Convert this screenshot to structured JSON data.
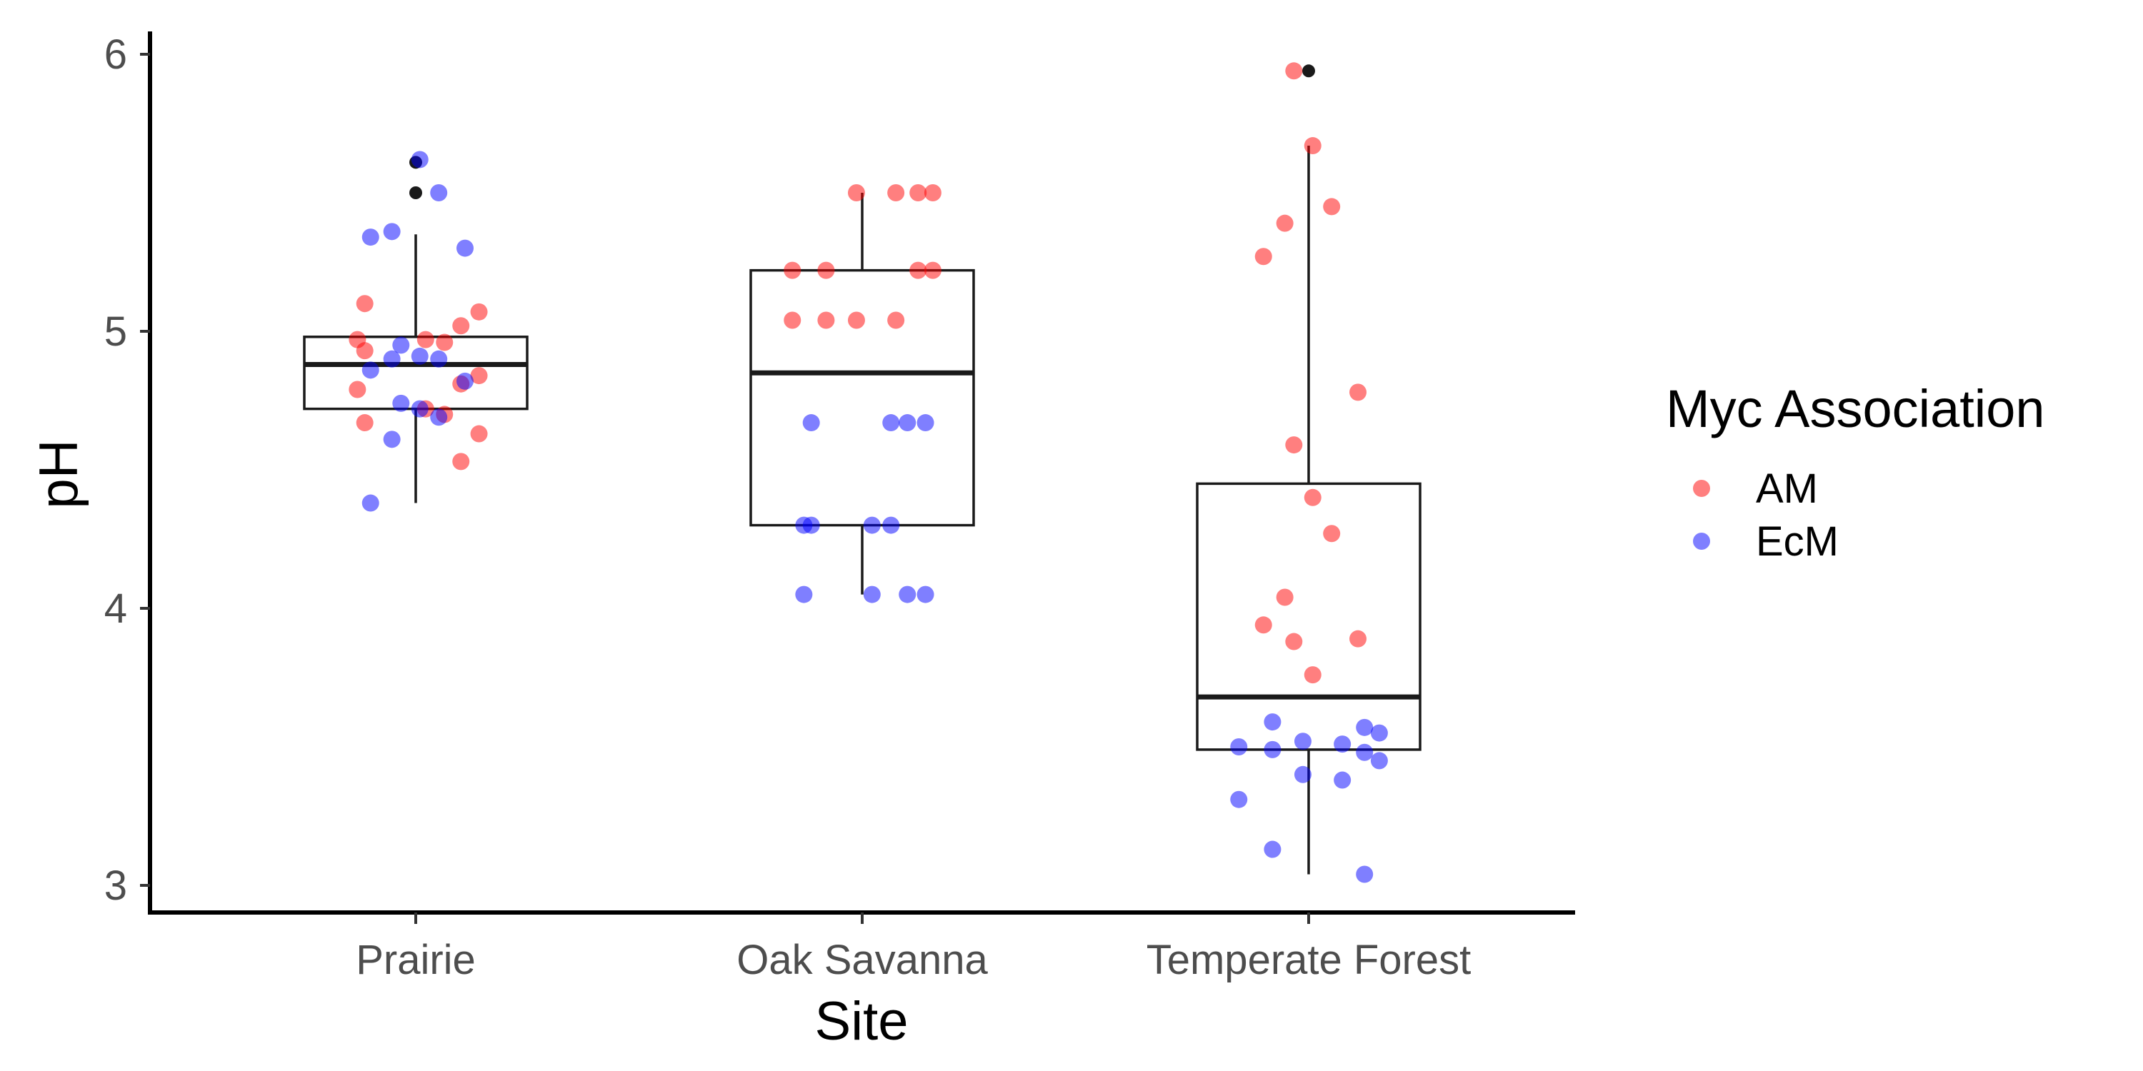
{
  "chart_data": {
    "type": "boxplot",
    "xlabel": "Site",
    "ylabel": "pH",
    "categories": [
      "Prairie",
      "Oak Savanna",
      "Temperate Forest"
    ],
    "y_ticks": [
      "3",
      "4",
      "5",
      "6"
    ],
    "ylim": [
      2.9,
      6.08
    ],
    "grid": false,
    "legend": {
      "title": "Myc Association",
      "position": "right",
      "entries": [
        {
          "name": "AM",
          "color": "#ff0000"
        },
        {
          "name": "EcM",
          "color": "#0000ff"
        }
      ]
    },
    "boxes": [
      {
        "category": "Prairie",
        "lower_whisker": 4.38,
        "q1": 4.72,
        "median": 4.88,
        "q3": 4.98,
        "upper_whisker": 5.35,
        "outliers": [
          5.5,
          5.61
        ]
      },
      {
        "category": "Oak Savanna",
        "lower_whisker": 4.05,
        "q1": 4.3,
        "median": 4.85,
        "q3": 5.22,
        "upper_whisker": 5.5,
        "outliers": []
      },
      {
        "category": "Temperate Forest",
        "lower_whisker": 3.04,
        "q1": 3.49,
        "median": 3.68,
        "q3": 4.45,
        "upper_whisker": 5.67,
        "outliers": [
          5.94
        ]
      }
    ],
    "points": [
      {
        "site": "Prairie",
        "group": "AM",
        "values": [
          5.1,
          5.07,
          5.02,
          4.97,
          4.97,
          4.96,
          4.93,
          4.84,
          4.81,
          4.79,
          4.72,
          4.7,
          4.67,
          4.63,
          4.53
        ]
      },
      {
        "site": "Prairie",
        "group": "EcM",
        "values": [
          5.62,
          5.5,
          5.36,
          5.34,
          5.3,
          4.95,
          4.91,
          4.9,
          4.9,
          4.86,
          4.82,
          4.74,
          4.72,
          4.69,
          4.61,
          4.38
        ]
      },
      {
        "site": "Oak Savanna",
        "group": "AM",
        "values": [
          5.5,
          5.5,
          5.5,
          5.5,
          5.22,
          5.22,
          5.22,
          5.22,
          5.04,
          5.04,
          5.04,
          5.04
        ]
      },
      {
        "site": "Oak Savanna",
        "group": "EcM",
        "values": [
          4.67,
          4.67,
          4.67,
          4.67,
          4.3,
          4.3,
          4.3,
          4.3,
          4.05,
          4.05,
          4.05,
          4.05
        ]
      },
      {
        "site": "Temperate Forest",
        "group": "AM",
        "values": [
          5.94,
          5.67,
          5.45,
          5.39,
          5.27,
          4.78,
          4.59,
          4.4,
          4.27,
          4.04,
          3.94,
          3.89,
          3.88,
          3.76
        ]
      },
      {
        "site": "Temperate Forest",
        "group": "EcM",
        "values": [
          3.59,
          3.57,
          3.55,
          3.52,
          3.51,
          3.5,
          3.49,
          3.48,
          3.45,
          3.4,
          3.38,
          3.31,
          3.13,
          3.04
        ]
      }
    ]
  }
}
